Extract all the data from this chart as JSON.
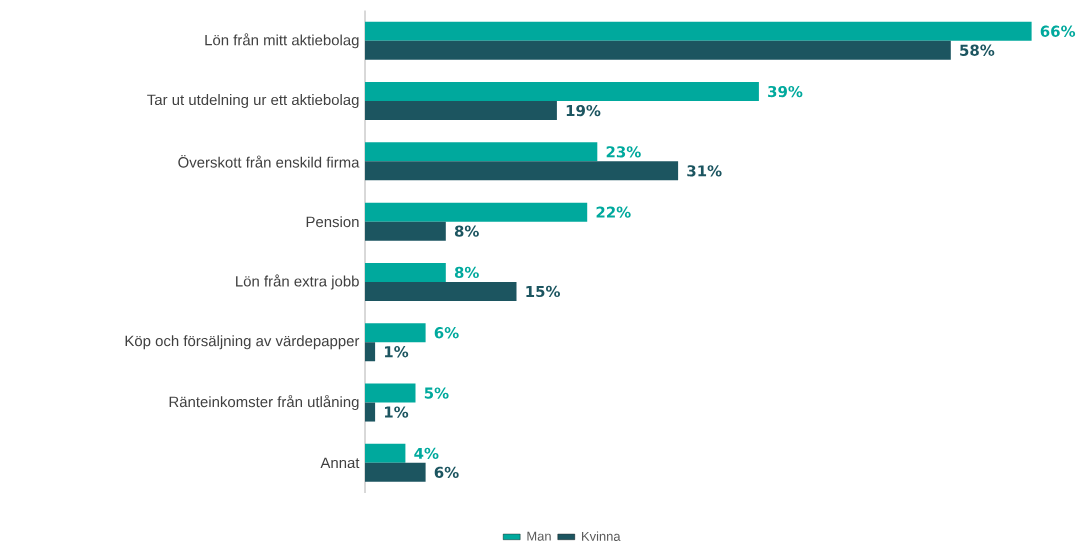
{
  "chart_data": {
    "type": "bar",
    "orientation": "horizontal",
    "legend": "bottom",
    "categories": [
      "Lön från mitt aktiebolag",
      "Tar ut utdelning ur ett aktiebolag",
      "Överskott från enskild firma",
      "Pension",
      "Lön från extra jobb",
      "Köp och försäljning av värdepapper",
      "Ränteinkomster från utlåning",
      "Annat"
    ],
    "series": [
      {
        "name": "Man",
        "color": "#00a99d",
        "values": [
          66,
          39,
          23,
          22,
          8,
          6,
          5,
          4
        ],
        "value_labels": [
          "66%",
          "39%",
          "23%",
          "22%",
          "8%",
          "6%",
          "5%",
          "4%"
        ]
      },
      {
        "name": "Kvinna",
        "color": "#1c5560",
        "values": [
          58,
          19,
          31,
          8,
          15,
          1,
          1,
          6
        ],
        "value_labels": [
          "58%",
          "19%",
          "31%",
          "8%",
          "15%",
          "1%",
          "1%",
          "6%"
        ]
      }
    ]
  }
}
